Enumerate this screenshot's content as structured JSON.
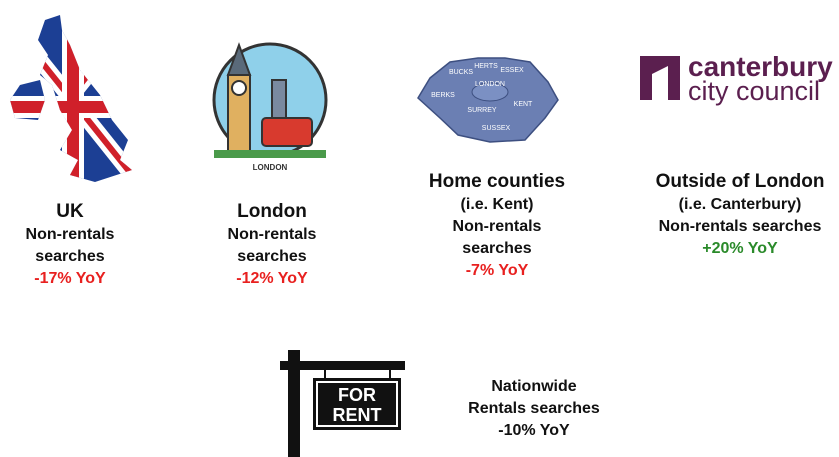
{
  "panels": [
    {
      "title": "UK",
      "lines": [
        "Non-rentals",
        "searches"
      ],
      "change": "-17% YoY",
      "color": "#e8201f"
    },
    {
      "title": "London",
      "lines": [
        "Non-rentals",
        "searches"
      ],
      "change": "-12% YoY",
      "color": "#e8201f",
      "badge": "LONDON"
    },
    {
      "title": "Home counties",
      "lines": [
        "(i.e. Kent)",
        "Non-rentals",
        "searches"
      ],
      "change": "-7% YoY",
      "color": "#e8201f",
      "map_labels": [
        "HERTS",
        "ESSEX",
        "BUCKS",
        "BERKS",
        "LONDON",
        "SURREY",
        "KENT",
        "SUSSEX"
      ]
    },
    {
      "title": "Outside of London",
      "lines": [
        "(i.e. Canterbury)",
        "Non-rentals searches"
      ],
      "change": "+20% YoY",
      "color": "#2a8a2a",
      "logo": [
        "canterbury",
        "city council"
      ]
    }
  ],
  "rentals": {
    "sign": [
      "FOR",
      "RENT"
    ],
    "lines": [
      "Nationwide",
      "Rentals searches",
      "-10% YoY"
    ]
  }
}
